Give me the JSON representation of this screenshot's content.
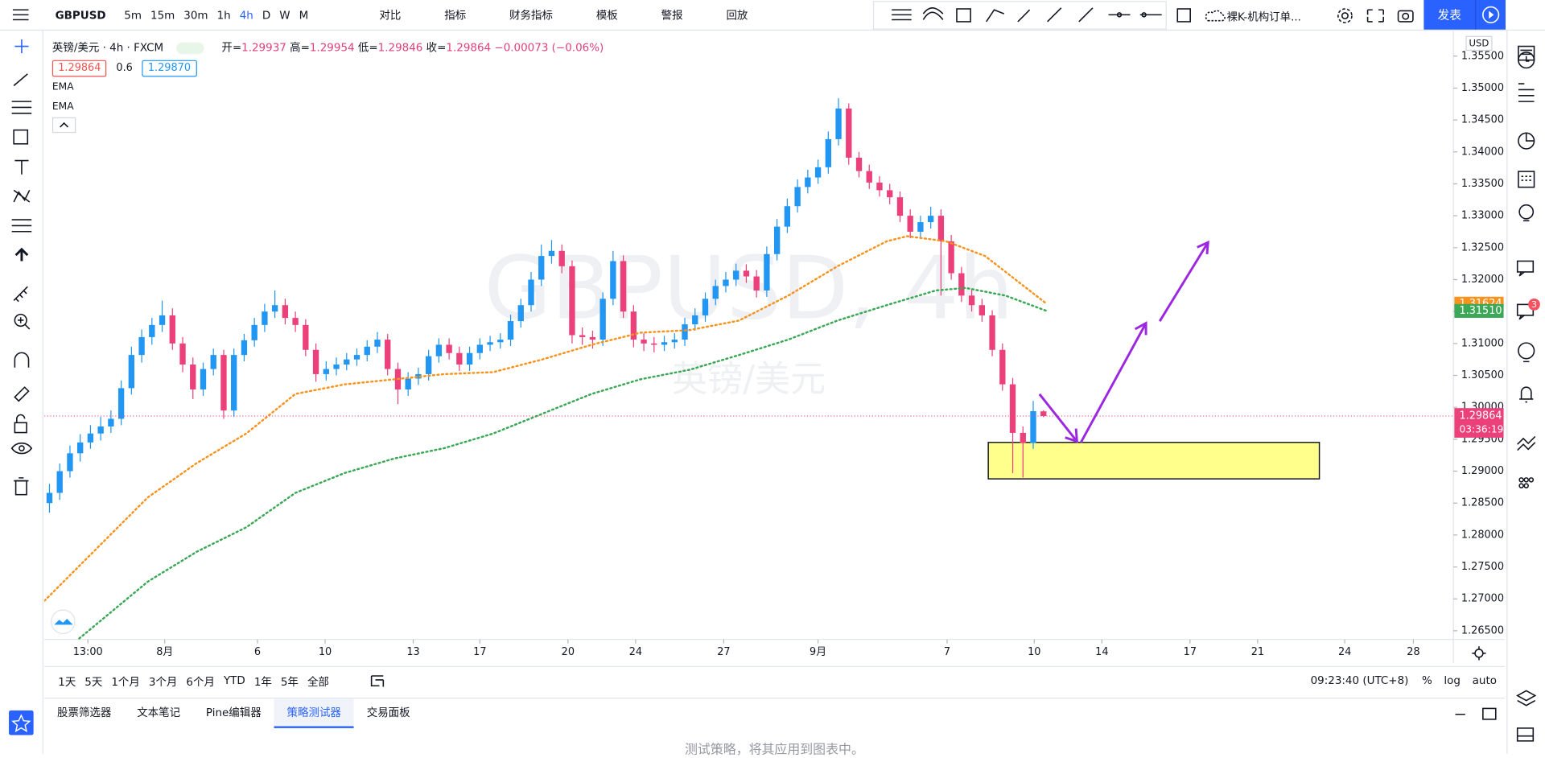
{
  "toolbar": {
    "symbol": "GBPUSD",
    "intervals": [
      "5m",
      "15m",
      "30m",
      "1h",
      "4h",
      "D",
      "W",
      "M"
    ],
    "actions": [
      "对比",
      "指标",
      "财务指标",
      "模板",
      "警报",
      "回放"
    ],
    "layout": "裸K-机构订单...",
    "publish": "发表"
  },
  "chart_data": {
    "type": "candlestick",
    "title": "英镑/美元 · 4h · FXCM",
    "legend_labels": [
      "开=",
      "高=",
      "低=",
      "收="
    ],
    "change": "−0.00073 (−0.06%)",
    "bid": 1.29864,
    "spread": 0.6,
    "ask": {
      "value": 1.2987,
      "label": "1.29870"
    },
    "watermark": "GBPUSD, 4h",
    "watermark_sub": "英镑/美元",
    "currency": "USD",
    "countdown": "03:36:19",
    "up_color": "#2196f3",
    "down_color": "#ec407a",
    "grid": false,
    "open": [
      1.285,
      1.2866,
      1.29,
      1.2928,
      1.2945,
      1.2959,
      1.297,
      1.2982,
      1.303,
      1.3082,
      1.311,
      1.3129,
      1.3144,
      1.31,
      1.3067,
      1.3028,
      1.306,
      1.3082,
      1.2995,
      1.3082,
      1.3105,
      1.3129,
      1.315,
      1.316,
      1.314,
      1.3129,
      1.309,
      1.3052,
      1.306,
      1.3067,
      1.3075,
      1.3082,
      1.3095,
      1.3106,
      1.306,
      1.3028,
      1.3045,
      1.3052,
      1.308,
      1.3098,
      1.3085,
      1.3067,
      1.3085,
      1.3098,
      1.3102,
      1.3106,
      1.3135,
      1.316,
      1.32,
      1.3237,
      1.3245,
      1.3221,
      1.3113,
      1.311,
      1.3106,
      1.317,
      1.3229,
      1.315,
      1.3106,
      1.31,
      1.3098,
      1.3102,
      1.3106,
      1.313,
      1.3144,
      1.317,
      1.319,
      1.32,
      1.3214,
      1.3205,
      1.3183,
      1.324,
      1.3283,
      1.3315,
      1.3345,
      1.336,
      1.3376,
      1.342,
      1.3468,
      1.3391,
      1.337,
      1.3352,
      1.334,
      1.3329,
      1.33,
      1.3275,
      1.329,
      1.33,
      1.326,
      1.321,
      1.3175,
      1.316,
      1.3144,
      1.309,
      1.3036,
      1.296,
      1.2944,
      1.29937
    ],
    "high": [
      1.288,
      1.2912,
      1.294,
      1.2958,
      1.2972,
      1.2985,
      1.2995,
      1.3042,
      1.3095,
      1.3122,
      1.314,
      1.3167,
      1.3155,
      1.311,
      1.3078,
      1.307,
      1.3092,
      1.309,
      1.3092,
      1.3115,
      1.314,
      1.3162,
      1.3183,
      1.317,
      1.315,
      1.3138,
      1.31,
      1.3072,
      1.3078,
      1.3085,
      1.3092,
      1.3105,
      1.3118,
      1.3115,
      1.307,
      1.3055,
      1.3062,
      1.309,
      1.3108,
      1.3108,
      1.3095,
      1.3095,
      1.3108,
      1.3112,
      1.3116,
      1.3145,
      1.317,
      1.3212,
      1.3255,
      1.3262,
      1.3255,
      1.323,
      1.3125,
      1.312,
      1.318,
      1.3245,
      1.3238,
      1.316,
      1.3116,
      1.311,
      1.3112,
      1.3116,
      1.314,
      1.3155,
      1.318,
      1.32,
      1.3212,
      1.3225,
      1.3224,
      1.3215,
      1.3252,
      1.3295,
      1.3327,
      1.3357,
      1.3372,
      1.3388,
      1.3432,
      1.3484,
      1.3476,
      1.34,
      1.338,
      1.3362,
      1.335,
      1.3338,
      1.331,
      1.33,
      1.3314,
      1.331,
      1.327,
      1.322,
      1.3185,
      1.317,
      1.3152,
      1.31,
      1.3046,
      1.297,
      1.301,
      1.29954
    ],
    "low": [
      1.2835,
      1.2855,
      1.289,
      1.2915,
      1.2935,
      1.2948,
      1.296,
      1.2972,
      1.302,
      1.307,
      1.3098,
      1.3118,
      1.309,
      1.3055,
      1.3013,
      1.3018,
      1.305,
      1.2982,
      1.2985,
      1.3072,
      1.3095,
      1.3118,
      1.314,
      1.313,
      1.3118,
      1.308,
      1.304,
      1.3042,
      1.305,
      1.3058,
      1.3065,
      1.3072,
      1.3085,
      1.305,
      1.3005,
      1.3018,
      1.3035,
      1.3042,
      1.307,
      1.3075,
      1.3057,
      1.3057,
      1.3075,
      1.3088,
      1.3092,
      1.3096,
      1.3125,
      1.315,
      1.319,
      1.3225,
      1.321,
      1.31,
      1.3098,
      1.3092,
      1.3096,
      1.316,
      1.314,
      1.3094,
      1.3088,
      1.3086,
      1.3088,
      1.3092,
      1.3096,
      1.312,
      1.3134,
      1.316,
      1.318,
      1.319,
      1.3195,
      1.3172,
      1.3173,
      1.323,
      1.3273,
      1.3305,
      1.3335,
      1.335,
      1.3366,
      1.341,
      1.338,
      1.336,
      1.3342,
      1.333,
      1.3318,
      1.329,
      1.3265,
      1.3265,
      1.328,
      1.3175,
      1.32,
      1.3165,
      1.315,
      1.3134,
      1.308,
      1.3026,
      1.2897,
      1.289,
      1.2935,
      1.29846
    ],
    "close": [
      1.2866,
      1.29,
      1.2928,
      1.2945,
      1.2959,
      1.297,
      1.2982,
      1.303,
      1.3082,
      1.311,
      1.3129,
      1.3144,
      1.31,
      1.3067,
      1.3028,
      1.306,
      1.3082,
      1.2995,
      1.3082,
      1.3105,
      1.3129,
      1.315,
      1.316,
      1.314,
      1.3129,
      1.309,
      1.3052,
      1.306,
      1.3067,
      1.3075,
      1.3082,
      1.3095,
      1.3106,
      1.306,
      1.3028,
      1.3045,
      1.3052,
      1.308,
      1.3098,
      1.3085,
      1.3067,
      1.3085,
      1.3098,
      1.3102,
      1.3106,
      1.3135,
      1.316,
      1.32,
      1.3237,
      1.3245,
      1.3221,
      1.3113,
      1.311,
      1.3106,
      1.317,
      1.3229,
      1.315,
      1.3106,
      1.31,
      1.3098,
      1.3102,
      1.3106,
      1.313,
      1.3144,
      1.317,
      1.319,
      1.32,
      1.3214,
      1.3205,
      1.3183,
      1.324,
      1.3283,
      1.3315,
      1.3345,
      1.336,
      1.3376,
      1.342,
      1.3468,
      1.3391,
      1.337,
      1.3352,
      1.334,
      1.3329,
      1.33,
      1.3275,
      1.329,
      1.33,
      1.326,
      1.321,
      1.3175,
      1.316,
      1.3144,
      1.309,
      1.3036,
      1.296,
      1.2944,
      1.2994,
      1.29864
    ],
    "series": [
      {
        "name": "EMA",
        "color": "#f7931e",
        "last_label": "1.31624",
        "x": [
          -0.48,
          4.8,
          9.6,
          14.4,
          19.2,
          24.0,
          28.8,
          33.7,
          38.5,
          43.3,
          48.1,
          52.9,
          57.7,
          62.5,
          67.3,
          72.1,
          76.9,
          81.7,
          83.7,
          87.5,
          91.3,
          97.3
        ],
        "values": [
          1.2697,
          1.2782,
          1.2859,
          1.2913,
          1.2959,
          1.3021,
          1.3036,
          1.3044,
          1.3052,
          1.3055,
          1.3075,
          1.3098,
          1.3117,
          1.3121,
          1.3136,
          1.3175,
          1.3221,
          1.326,
          1.3268,
          1.326,
          1.3237,
          1.31624
        ]
      },
      {
        "name": "EMA",
        "color": "#3aa856",
        "last_label": "1.31510",
        "x": [
          2.9,
          9.6,
          14.4,
          19.2,
          24.0,
          28.8,
          33.7,
          38.5,
          43.3,
          48.1,
          52.9,
          57.7,
          62.5,
          67.3,
          72.1,
          76.9,
          81.7,
          86.5,
          89.4,
          93.3,
          97.3
        ],
        "values": [
          1.2638,
          1.2727,
          1.2774,
          1.2812,
          1.2866,
          1.2897,
          1.292,
          1.2936,
          1.2959,
          1.299,
          1.3021,
          1.3044,
          1.3059,
          1.3082,
          1.3106,
          1.3136,
          1.316,
          1.3183,
          1.3187,
          1.3175,
          1.3151
        ]
      }
    ],
    "xlim": [
      -0.5,
      137
    ],
    "xticks": [
      {
        "value": 3.75,
        "label": "13:00"
      },
      {
        "value": 11.25,
        "label": "8月"
      },
      {
        "value": 20.3,
        "label": "6"
      },
      {
        "value": 26.9,
        "label": "10"
      },
      {
        "value": 35.5,
        "label": "13"
      },
      {
        "value": 42,
        "label": "17"
      },
      {
        "value": 50.6,
        "label": "20"
      },
      {
        "value": 57.2,
        "label": "24"
      },
      {
        "value": 65.8,
        "label": "27"
      },
      {
        "value": 75,
        "label": "9月"
      },
      {
        "value": 87.6,
        "label": "7"
      },
      {
        "value": 96.1,
        "label": "10"
      },
      {
        "value": 102.7,
        "label": "14"
      },
      {
        "value": 111.3,
        "label": "17"
      },
      {
        "value": 117.9,
        "label": "21"
      },
      {
        "value": 126.4,
        "label": "24"
      },
      {
        "value": 133.1,
        "label": "28"
      }
    ],
    "ylim": [
      1.26364,
      1.35901
    ],
    "yticks": [
      {
        "value": 1.265,
        "label": "1.26500"
      },
      {
        "value": 1.27,
        "label": "1.27000"
      },
      {
        "value": 1.275,
        "label": "1.27500"
      },
      {
        "value": 1.28,
        "label": "1.28000"
      },
      {
        "value": 1.285,
        "label": "1.28500"
      },
      {
        "value": 1.29,
        "label": "1.29000"
      },
      {
        "value": 1.295,
        "label": "1.29500"
      },
      {
        "value": 1.3,
        "label": "1.30000"
      },
      {
        "value": 1.305,
        "label": "1.30500"
      },
      {
        "value": 1.31,
        "label": "1.31000"
      },
      {
        "value": 1.315,
        "label": "1.31500"
      },
      {
        "value": 1.32,
        "label": "1.32000"
      },
      {
        "value": 1.325,
        "label": "1.32500"
      },
      {
        "value": 1.33,
        "label": "1.33000"
      },
      {
        "value": 1.335,
        "label": "1.33500"
      },
      {
        "value": 1.34,
        "label": "1.34000"
      },
      {
        "value": 1.345,
        "label": "1.34500"
      },
      {
        "value": 1.35,
        "label": "1.35000"
      },
      {
        "value": 1.355,
        "label": "1.35500"
      }
    ]
  },
  "range_bar": {
    "ranges": [
      "1天",
      "5天",
      "1个月",
      "3个月",
      "6个月",
      "YTD",
      "1年",
      "5年",
      "全部"
    ],
    "clock": "09:23:40 (UTC+8)",
    "scale_options": [
      "%",
      "log",
      "auto"
    ]
  },
  "panel": {
    "tabs": [
      "股票筛选器",
      "文本笔记",
      "Pine编辑器",
      "策略测试器",
      "交易面板"
    ],
    "message": "测试策略，将其应用到图表中。"
  },
  "side_toolbar": {
    "badge": 3
  }
}
